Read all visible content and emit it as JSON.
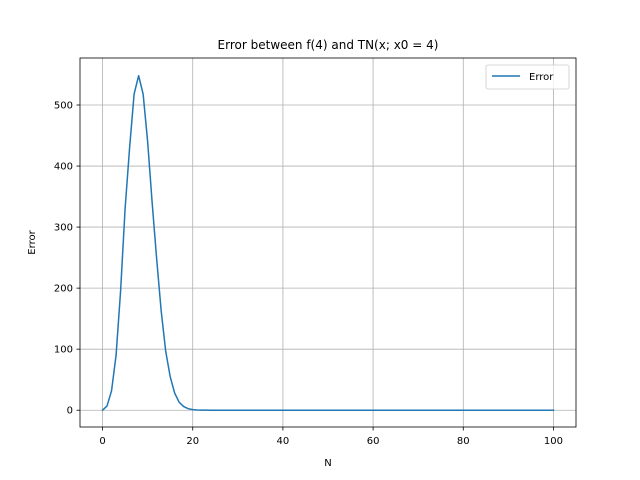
{
  "chart_data": {
    "type": "line",
    "title": "Error between f(4) and TN(x; x0 = 4)",
    "xlabel": "N",
    "ylabel": "Error",
    "xlim": [
      -5,
      105
    ],
    "ylim": [
      -27.5,
      577
    ],
    "xticks": [
      0,
      20,
      40,
      60,
      80,
      100
    ],
    "yticks": [
      0,
      100,
      200,
      300,
      400,
      500
    ],
    "grid": true,
    "legend_position": "upper right",
    "colors": {
      "series": "#1f77b4",
      "grid": "#b0b0b0",
      "axes": "#000000"
    },
    "series": [
      {
        "name": "Error",
        "x": [
          0,
          1,
          2,
          3,
          4,
          5,
          6,
          7,
          8,
          9,
          10,
          11,
          12,
          13,
          14,
          15,
          16,
          17,
          18,
          19,
          20,
          21,
          22,
          23,
          24,
          25,
          30,
          40,
          50,
          60,
          70,
          80,
          90,
          100
        ],
        "y": [
          0,
          7,
          32,
          90,
          195,
          330,
          430,
          518,
          548,
          518,
          440,
          340,
          248,
          163,
          97,
          55,
          28,
          13,
          6,
          2.5,
          1,
          0.4,
          0.15,
          0.05,
          0.02,
          0,
          0,
          0,
          0,
          0,
          0,
          0,
          0,
          0
        ]
      }
    ]
  }
}
